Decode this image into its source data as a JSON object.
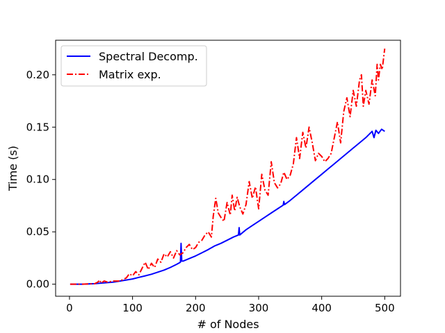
{
  "chart_data": {
    "type": "line",
    "title": "",
    "xlabel": "# of Nodes",
    "ylabel": "Time (s)",
    "xlim": [
      -22,
      525
    ],
    "ylim": [
      -0.0115,
      0.233
    ],
    "xticks": [
      0,
      100,
      200,
      300,
      400,
      500
    ],
    "xtick_labels": [
      "0",
      "100",
      "200",
      "300",
      "400",
      "500"
    ],
    "yticks": [
      0.0,
      0.05,
      0.1,
      0.15,
      0.2
    ],
    "ytick_labels": [
      "0.00",
      "0.05",
      "0.10",
      "0.15",
      "0.20"
    ],
    "grid": false,
    "legend_position": "upper-left",
    "series": [
      {
        "name": "Spectral Decomp.",
        "color": "#0000ff",
        "linestyle": "solid",
        "x": [
          1,
          20,
          40,
          50,
          60,
          70,
          80,
          90,
          100,
          110,
          120,
          130,
          140,
          150,
          160,
          170,
          176,
          177,
          178,
          180,
          190,
          200,
          210,
          220,
          230,
          240,
          250,
          260,
          268,
          269,
          270,
          280,
          290,
          300,
          310,
          320,
          330,
          339,
          340,
          341,
          350,
          360,
          370,
          380,
          390,
          400,
          410,
          420,
          430,
          440,
          450,
          460,
          470,
          475,
          480,
          483,
          486,
          490,
          495,
          500
        ],
        "y": [
          0.0,
          0.0,
          0.0005,
          0.001,
          0.0015,
          0.002,
          0.003,
          0.004,
          0.005,
          0.0065,
          0.008,
          0.0095,
          0.0115,
          0.0135,
          0.016,
          0.019,
          0.021,
          0.039,
          0.022,
          0.022,
          0.0245,
          0.027,
          0.03,
          0.033,
          0.0365,
          0.039,
          0.042,
          0.045,
          0.047,
          0.054,
          0.047,
          0.052,
          0.056,
          0.06,
          0.064,
          0.068,
          0.072,
          0.0755,
          0.079,
          0.076,
          0.08,
          0.085,
          0.09,
          0.095,
          0.1,
          0.105,
          0.11,
          0.115,
          0.12,
          0.125,
          0.13,
          0.135,
          0.14,
          0.143,
          0.146,
          0.14,
          0.147,
          0.144,
          0.148,
          0.146
        ]
      },
      {
        "name": "Matrix exp.",
        "color": "#ff0000",
        "linestyle": "dashdot",
        "x": [
          1,
          20,
          40,
          45,
          48,
          50,
          55,
          60,
          70,
          80,
          90,
          95,
          100,
          105,
          110,
          115,
          120,
          125,
          130,
          135,
          140,
          145,
          150,
          155,
          160,
          165,
          170,
          175,
          180,
          185,
          190,
          195,
          200,
          205,
          210,
          215,
          220,
          225,
          228,
          232,
          236,
          240,
          245,
          250,
          255,
          258,
          262,
          266,
          270,
          275,
          280,
          285,
          290,
          295,
          300,
          305,
          310,
          315,
          320,
          325,
          330,
          335,
          340,
          345,
          350,
          355,
          360,
          365,
          370,
          375,
          380,
          385,
          390,
          395,
          400,
          405,
          410,
          415,
          420,
          425,
          430,
          435,
          440,
          445,
          450,
          455,
          460,
          463,
          466,
          470,
          475,
          480,
          485,
          488,
          490,
          493,
          496,
          498,
          500
        ],
        "y": [
          0.0,
          0.0,
          0.0005,
          0.002,
          0.004,
          0.001,
          0.003,
          0.002,
          0.003,
          0.003,
          0.006,
          0.01,
          0.008,
          0.012,
          0.009,
          0.015,
          0.021,
          0.014,
          0.02,
          0.016,
          0.024,
          0.021,
          0.029,
          0.026,
          0.031,
          0.025,
          0.032,
          0.028,
          0.03,
          0.035,
          0.038,
          0.033,
          0.035,
          0.04,
          0.042,
          0.047,
          0.05,
          0.045,
          0.065,
          0.082,
          0.068,
          0.064,
          0.06,
          0.078,
          0.066,
          0.085,
          0.07,
          0.083,
          0.074,
          0.067,
          0.076,
          0.098,
          0.082,
          0.093,
          0.072,
          0.105,
          0.09,
          0.085,
          0.117,
          0.097,
          0.092,
          0.096,
          0.107,
          0.1,
          0.104,
          0.115,
          0.14,
          0.12,
          0.145,
          0.13,
          0.15,
          0.135,
          0.118,
          0.125,
          0.122,
          0.117,
          0.12,
          0.125,
          0.14,
          0.155,
          0.135,
          0.165,
          0.178,
          0.16,
          0.185,
          0.17,
          0.195,
          0.2,
          0.17,
          0.185,
          0.172,
          0.195,
          0.18,
          0.21,
          0.195,
          0.21,
          0.205,
          0.215,
          0.225
        ]
      }
    ]
  }
}
